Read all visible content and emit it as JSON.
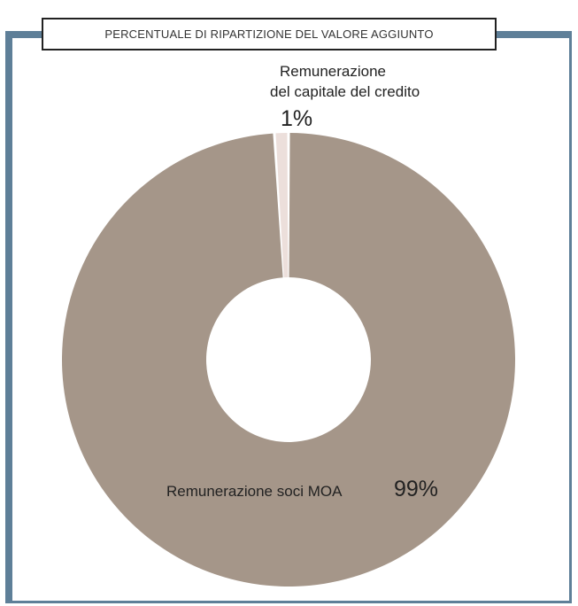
{
  "title": "PERCENTUALE DI RIPARTIZIONE DEL VALORE AGGIUNTO",
  "colors": {
    "frame": "#5e7f98",
    "slice_main": "#a59689",
    "slice_small": "#ecdfdb"
  },
  "chart_data": {
    "type": "pie",
    "title": "PERCENTUALE DI RIPARTIZIONE DEL VALORE AGGIUNTO",
    "donut": true,
    "slices": [
      {
        "label_lines": [
          "Remunerazione",
          "del capitale del credito"
        ],
        "value": 1,
        "value_label": "1%",
        "color": "#ecdfdb"
      },
      {
        "label_lines": [
          "Remunerazione soci MOA"
        ],
        "value": 99,
        "value_label": "99%",
        "color": "#a59689"
      }
    ]
  }
}
